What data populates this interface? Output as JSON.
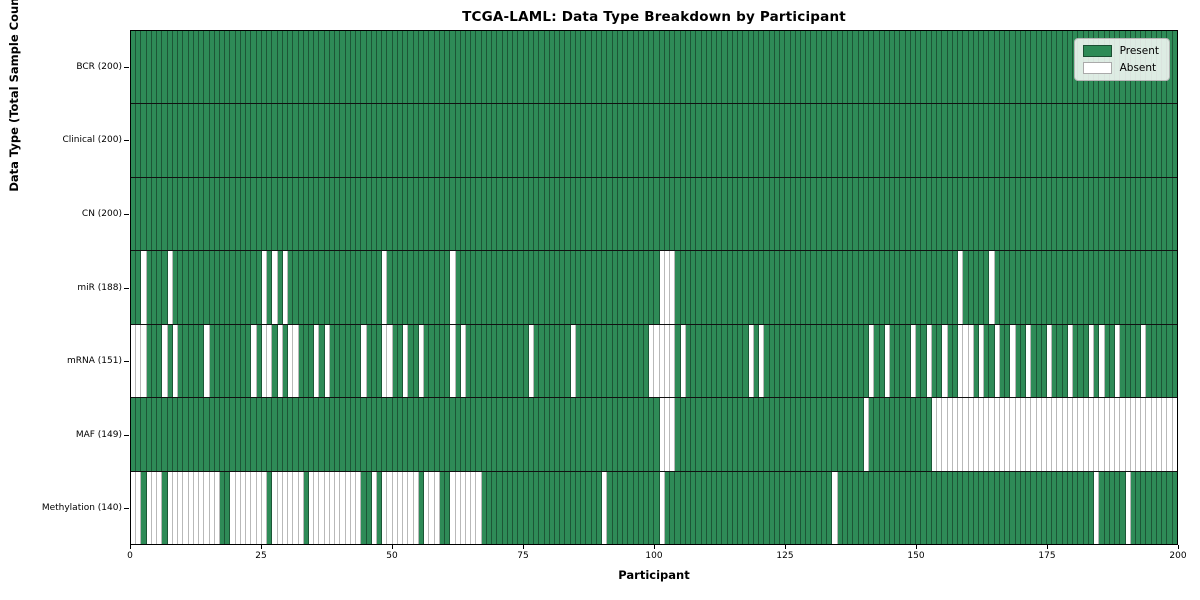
{
  "title": "TCGA-LAML: Data Type Breakdown by Participant",
  "legend": {
    "items": [
      {
        "label": "Present",
        "color": "#2e8b57",
        "border": "#1c4f33"
      },
      {
        "label": "Absent",
        "color": "#ffffff",
        "border": "#aaaaaa"
      }
    ]
  },
  "chart_data": {
    "type": "heatmap",
    "title": "TCGA-LAML: Data Type Breakdown by Participant",
    "xlabel": "Participant",
    "ylabel": "Data Type (Total Sample Count)",
    "n_participants": 200,
    "x_ticks": [
      0,
      25,
      50,
      75,
      100,
      125,
      150,
      175,
      200
    ],
    "xlim": [
      0,
      200
    ],
    "grid": false,
    "legend_position": "upper right",
    "present_color": "#2e8b57",
    "absent_color": "#ffffff",
    "value_legend": {
      "present": "Present",
      "absent": "Absent"
    },
    "rows": [
      {
        "label": "BCR (200)",
        "name": "BCR",
        "present_count": 200,
        "absent_participants": []
      },
      {
        "label": "Clinical (200)",
        "name": "Clinical",
        "present_count": 200,
        "absent_participants": []
      },
      {
        "label": "CN (200)",
        "name": "CN",
        "present_count": 200,
        "absent_participants": []
      },
      {
        "label": "miR (188)",
        "name": "miR",
        "present_count": 188,
        "absent_participants": [
          2,
          7,
          25,
          27,
          29,
          48,
          61,
          101,
          102,
          103,
          158,
          164
        ]
      },
      {
        "label": "mRNA (151)",
        "name": "mRNA",
        "present_count": 151,
        "absent_participants": [
          0,
          1,
          2,
          6,
          8,
          14,
          23,
          25,
          26,
          28,
          30,
          31,
          35,
          37,
          44,
          48,
          49,
          52,
          55,
          61,
          63,
          76,
          84,
          99,
          100,
          101,
          102,
          103,
          105,
          118,
          120,
          141,
          144,
          149,
          152,
          155,
          158,
          159,
          160,
          162,
          165,
          168,
          171,
          175,
          179,
          183,
          185,
          188,
          193
        ]
      },
      {
        "label": "MAF (149)",
        "name": "MAF",
        "present_count": 149,
        "absent_participants": [
          101,
          102,
          103,
          140,
          153,
          154,
          155,
          156,
          157,
          158,
          159,
          160,
          161,
          162,
          163,
          164,
          165,
          166,
          167,
          168,
          169,
          170,
          171,
          172,
          173,
          174,
          175,
          176,
          177,
          178,
          179,
          180,
          181,
          182,
          183,
          184,
          185,
          186,
          187,
          188,
          189,
          190,
          191,
          192,
          193,
          194,
          195,
          196,
          197,
          198,
          199
        ]
      },
      {
        "label": "Methylation (140)",
        "name": "Methylation",
        "present_count": 140,
        "absent_participants": [
          0,
          1,
          3,
          4,
          5,
          7,
          8,
          9,
          10,
          11,
          12,
          13,
          14,
          15,
          16,
          19,
          20,
          21,
          22,
          23,
          24,
          25,
          27,
          28,
          29,
          30,
          31,
          32,
          34,
          35,
          36,
          37,
          38,
          39,
          40,
          41,
          42,
          43,
          46,
          48,
          49,
          50,
          51,
          52,
          53,
          54,
          56,
          57,
          58,
          61,
          62,
          63,
          64,
          65,
          66,
          90,
          101,
          134,
          184,
          190
        ]
      }
    ]
  }
}
